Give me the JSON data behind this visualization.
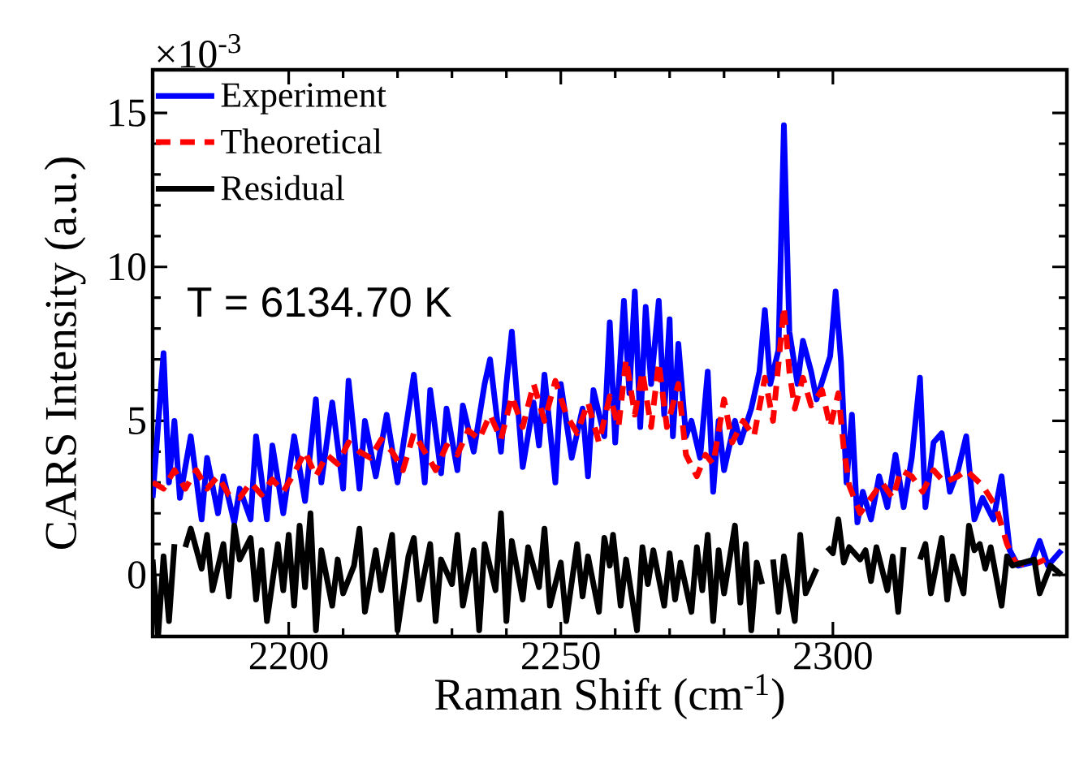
{
  "chart_data": {
    "type": "line",
    "xlabel": "Raman Shift (cm$^{-1}$)",
    "ylabel": "CARS Intensity (a.u.)",
    "xlim": [
      2175,
      2343
    ],
    "ylim": [
      -2,
      16.4
    ],
    "xticks": [
      2200,
      2250,
      2300
    ],
    "yticks": [
      0,
      5,
      10,
      15
    ],
    "legend": "top left",
    "annotations": [
      "×10$^{-3}$",
      "T = 6134.70 K"
    ],
    "series": [
      {
        "name": "Experiment",
        "color": "#0000ff",
        "line_style": "solid",
        "x": [
          2175,
          2177,
          2178,
          2179,
          2180,
          2182,
          2184,
          2185,
          2187,
          2188,
          2190,
          2191,
          2193,
          2194,
          2196,
          2197,
          2199,
          2201,
          2203,
          2205,
          2206,
          2208,
          2210,
          2211,
          2213,
          2214,
          2216,
          2218,
          2220,
          2223,
          2225,
          2226,
          2228,
          2229,
          2231,
          2232,
          2234,
          2236,
          2237,
          2239,
          2240,
          2241,
          2243,
          2245,
          2246,
          2247,
          2249,
          2250,
          2252,
          2254,
          2255,
          2256,
          2258,
          2259,
          2260,
          2261.6,
          2262.6,
          2263.6,
          2264.6,
          2265.6,
          2266.6,
          2268,
          2269,
          2270,
          2270.6,
          2271.6,
          2273,
          2274,
          2275.6,
          2277,
          2278,
          2279,
          2280,
          2282,
          2283,
          2285,
          2286.5,
          2287.5,
          2288.5,
          2290,
          2291,
          2292,
          2293.5,
          2294.5,
          2296,
          2297,
          2299.5,
          2300.5,
          2301.5,
          2302.5,
          2303.5,
          2304.5,
          2305.5,
          2307,
          2308.5,
          2310,
          2311.5,
          2313,
          2314.5,
          2316,
          2317,
          2318.5,
          2320,
          2321.5,
          2323,
          2324.5,
          2326,
          2327.5,
          2329.5,
          2331,
          2332.5,
          2334,
          2336.5,
          2338,
          2339.5,
          2342
        ],
        "values": [
          2.5,
          7.2,
          3.0,
          5.0,
          2.5,
          4.5,
          1.8,
          3.8,
          2.0,
          3.2,
          1.7,
          2.8,
          1.8,
          4.5,
          1.8,
          4.2,
          2.0,
          4.5,
          2.4,
          5.7,
          3.0,
          5.6,
          2.8,
          6.3,
          2.8,
          5.0,
          3.2,
          5.2,
          3.0,
          6.5,
          3.0,
          6.0,
          3.3,
          5.4,
          3.4,
          5.5,
          4.0,
          6.2,
          7.0,
          4.0,
          6.2,
          7.9,
          3.5,
          5.6,
          4.2,
          6.5,
          3.0,
          6.2,
          3.8,
          5.4,
          3.2,
          6.0,
          4.5,
          8.2,
          4.3,
          8.9,
          5.9,
          9.2,
          4.8,
          8.7,
          6.2,
          8.9,
          5.2,
          8.3,
          4.5,
          7.5,
          4.5,
          5.0,
          3.8,
          6.6,
          2.7,
          5.0,
          3.4,
          5.0,
          4.3,
          5.4,
          6.6,
          8.6,
          6.2,
          7.3,
          14.6,
          7.9,
          6.2,
          7.6,
          6.6,
          5.7,
          7.1,
          9.2,
          6.9,
          3.0,
          5.2,
          1.7,
          2.7,
          1.8,
          3.2,
          2.2,
          3.9,
          2.2,
          3.8,
          6.4,
          2.2,
          4.3,
          4.6,
          2.7,
          3.4,
          4.5,
          1.8,
          2.5,
          1.8,
          3.2,
          0.8,
          0.3,
          0.4,
          1.1,
          0.3,
          0.8
        ]
      },
      {
        "name": "Theoretical",
        "color": "#ff0000",
        "line_style": "dashed",
        "x": [
          2175,
          2177,
          2179,
          2181,
          2183,
          2185,
          2187,
          2189,
          2191,
          2193,
          2195,
          2197,
          2199,
          2201,
          2203,
          2205,
          2207,
          2209,
          2211,
          2213,
          2215,
          2217,
          2219,
          2221,
          2223,
          2225,
          2227,
          2229,
          2231,
          2233,
          2235,
          2237,
          2239,
          2241,
          2243,
          2245,
          2247,
          2249,
          2251,
          2253,
          2255,
          2257,
          2259,
          2260.6,
          2262,
          2263.6,
          2265,
          2266.6,
          2268,
          2269.5,
          2271.6,
          2273,
          2275,
          2276.6,
          2278,
          2280,
          2281.5,
          2283.5,
          2285.5,
          2287.5,
          2289,
          2291,
          2292,
          2293,
          2294.5,
          2296,
          2298,
          2299.5,
          2301,
          2302,
          2303,
          2305,
          2307,
          2309,
          2311,
          2312.5,
          2314.5,
          2316.5,
          2318.5,
          2320.5,
          2323,
          2324.5,
          2327.5,
          2330,
          2332,
          2333.5,
          2336.5,
          2339
        ],
        "values": [
          3.0,
          2.8,
          3.4,
          2.8,
          3.4,
          2.8,
          3.2,
          2.6,
          2.5,
          3.0,
          2.6,
          3.1,
          2.7,
          3.3,
          4.0,
          3.2,
          3.9,
          3.6,
          4.3,
          4.0,
          3.8,
          4.4,
          4.0,
          3.4,
          4.6,
          4.0,
          3.4,
          4.2,
          3.9,
          4.7,
          4.4,
          5.2,
          4.4,
          5.8,
          4.8,
          6.2,
          5.0,
          6.3,
          5.2,
          4.6,
          5.6,
          4.3,
          5.8,
          4.8,
          7.0,
          5.2,
          6.6,
          4.8,
          6.9,
          4.8,
          6.2,
          3.9,
          3.2,
          3.9,
          3.6,
          5.7,
          4.3,
          5.0,
          4.5,
          6.4,
          5.0,
          8.7,
          6.6,
          5.4,
          6.4,
          5.5,
          6.0,
          4.8,
          5.9,
          4.1,
          2.9,
          2.0,
          2.5,
          3.0,
          2.5,
          3.4,
          3.2,
          2.7,
          3.4,
          3.0,
          3.2,
          3.4,
          2.9,
          2.2,
          1.0,
          0.4,
          0.3,
          0.5
        ]
      },
      {
        "name": "Residual",
        "color": "#000000",
        "line_style": "solid",
        "x": [
          2175,
          2176,
          2177,
          2178,
          2179,
          2180,
          2181,
          2182,
          2184,
          2185,
          2186,
          2188,
          2189,
          2190,
          2191,
          2193,
          2194,
          2195,
          2196,
          2198,
          2199,
          2200,
          2201,
          2202,
          2203,
          2204,
          2205,
          2206,
          2208,
          2209,
          2210,
          2212,
          2213,
          2214,
          2216,
          2217,
          2219,
          2220,
          2222,
          2223,
          2224,
          2226,
          2227,
          2228,
          2230,
          2231,
          2232,
          2234,
          2235,
          2236,
          2238,
          2239,
          2240,
          2241,
          2243,
          2244,
          2246,
          2247,
          2248,
          2250,
          2251,
          2253,
          2254,
          2255,
          2257,
          2258,
          2259,
          2259.6,
          2261,
          2262,
          2264,
          2265,
          2266,
          2267,
          2269,
          2270,
          2271,
          2272,
          2274,
          2275,
          2276,
          2277,
          2278,
          2279,
          2280,
          2282,
          2283,
          2284,
          2285,
          2286,
          2287,
          2288,
          2289,
          2290,
          2291,
          2293,
          2294,
          2295,
          2297,
          2298,
          2299,
          2300,
          2301,
          2302,
          2303,
          2305,
          2306,
          2307,
          2308,
          2310,
          2311,
          2312,
          2313,
          2315,
          2316,
          2317,
          2318,
          2320,
          2321,
          2322,
          2324,
          2325,
          2326,
          2327,
          2328,
          2329,
          2331,
          2332,
          2333,
          2335,
          2337,
          2338,
          2340,
          2342
        ],
        "values": [
          0.5,
          -2.0,
          0.6,
          -1.5,
          1.0,
          null,
          0.9,
          1.5,
          0.2,
          1.3,
          -0.5,
          1.0,
          -0.7,
          1.6,
          0.5,
          1.2,
          -0.8,
          0.8,
          -1.5,
          1.0,
          -0.5,
          1.3,
          -1.0,
          1.6,
          -0.4,
          2.0,
          -1.8,
          0.8,
          -1.0,
          0.5,
          -0.6,
          0.3,
          1.5,
          -1.2,
          0.8,
          -0.5,
          1.3,
          -1.8,
          0.6,
          1.2,
          -0.8,
          1.0,
          -1.5,
          0.5,
          -0.3,
          1.3,
          -1.0,
          0.8,
          -1.8,
          1.0,
          -0.5,
          2.0,
          -1.5,
          1.1,
          -0.8,
          0.9,
          -0.4,
          1.5,
          -1.0,
          0.4,
          -1.5,
          1.0,
          -0.7,
          0.6,
          -1.2,
          1.2,
          0.3,
          1.3,
          -1.0,
          0.5,
          -1.8,
          0.9,
          -0.3,
          0.8,
          -1.0,
          0.7,
          -0.8,
          0.4,
          -1.2,
          0.9,
          -0.5,
          1.3,
          -1.5,
          0.8,
          -0.6,
          1.6,
          -0.9,
          1.0,
          -1.8,
          0.4,
          -0.3,
          null,
          0.5,
          -1.2,
          0.6,
          -1.5,
          1.3,
          -0.6,
          0.2,
          null,
          0.9,
          0.7,
          1.8,
          0.4,
          0.9,
          0.5,
          0.8,
          -0.2,
          0.9,
          -0.5,
          0.6,
          -1.2,
          0.9,
          null,
          0.5,
          1.0,
          -0.6,
          1.2,
          -0.8,
          0.6,
          -0.6,
          1.6,
          0.8,
          1.0,
          0.2,
          0.9,
          -1.0,
          0.6,
          0.3,
          0.4,
          0.5,
          -0.6,
          0.3,
          0.0
        ]
      }
    ]
  }
}
